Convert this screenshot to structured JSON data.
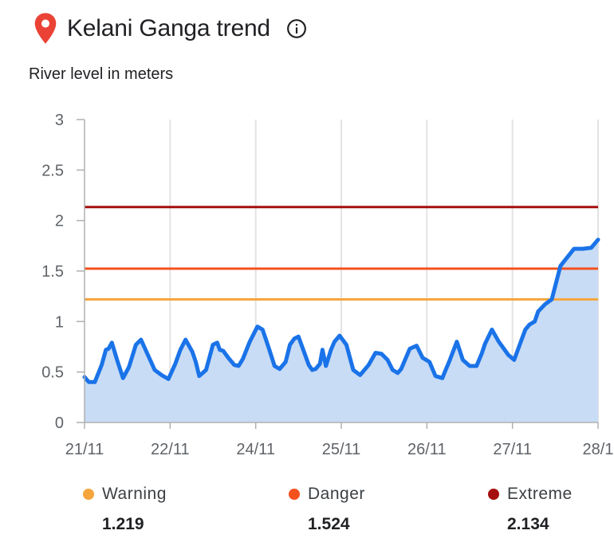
{
  "header": {
    "title": "Kelani Ganga trend",
    "pin_icon": "location-pin-icon",
    "info_icon": "info-icon",
    "pin_color": "#ea4335"
  },
  "subtitle": "River level in meters",
  "legend": [
    {
      "label": "Warning",
      "value": "1.219",
      "color": "#f5a53c"
    },
    {
      "label": "Danger",
      "value": "1.524",
      "color": "#f4511e"
    },
    {
      "label": "Extreme",
      "value": "2.134",
      "color": "#a50e0e"
    }
  ],
  "chart_data": {
    "type": "area",
    "ylabel": "River level in meters",
    "ylim": [
      0,
      3
    ],
    "yticks": [
      "0",
      "0.5",
      "1",
      "1.5",
      "2",
      "2.5",
      "3"
    ],
    "xlim": [
      0,
      6
    ],
    "xticks": [
      {
        "label": "21/11",
        "x": 0
      },
      {
        "label": "22/11",
        "x": 1
      },
      {
        "label": "24/11",
        "x": 2
      },
      {
        "label": "25/11",
        "x": 3
      },
      {
        "label": "26/11",
        "x": 4
      },
      {
        "label": "27/11",
        "x": 5
      },
      {
        "label": "28/1",
        "x": 6
      }
    ],
    "grid": "vertical",
    "thresholds": [
      {
        "name": "Warning",
        "value": 1.219,
        "color": "#f5a53c"
      },
      {
        "name": "Danger",
        "value": 1.524,
        "color": "#f4511e"
      },
      {
        "name": "Extreme",
        "value": 2.134,
        "color": "#a50e0e"
      }
    ],
    "series": [
      {
        "color": "#1a73e8",
        "fill": "#c9dcf5",
        "x": [
          0,
          0.05,
          0.12,
          0.2,
          0.25,
          0.28,
          0.32,
          0.38,
          0.45,
          0.52,
          0.6,
          0.66,
          0.74,
          0.82,
          0.9,
          0.98,
          1.06,
          1.12,
          1.18,
          1.26,
          1.3,
          1.34,
          1.42,
          1.5,
          1.55,
          1.58,
          1.62,
          1.68,
          1.75,
          1.8,
          1.85,
          1.93,
          2.02,
          2.08,
          2.16,
          2.22,
          2.28,
          2.35,
          2.4,
          2.45,
          2.5,
          2.56,
          2.62,
          2.66,
          2.7,
          2.75,
          2.78,
          2.82,
          2.88,
          2.92,
          2.98,
          3.06,
          3.14,
          3.22,
          3.32,
          3.4,
          3.47,
          3.54,
          3.6,
          3.66,
          3.7,
          3.8,
          3.88,
          3.95,
          4.03,
          4.1,
          4.18,
          4.22,
          4.26,
          4.35,
          4.42,
          4.5,
          4.58,
          4.64,
          4.68,
          4.76,
          4.84,
          4.9,
          4.95,
          5.02,
          5.08,
          5.15,
          5.2,
          5.26,
          5.3,
          5.38,
          5.46,
          5.56,
          5.72,
          5.82,
          5.92,
          6.0
        ],
        "values": [
          0.45,
          0.4,
          0.4,
          0.57,
          0.72,
          0.73,
          0.79,
          0.62,
          0.44,
          0.55,
          0.77,
          0.82,
          0.67,
          0.52,
          0.47,
          0.43,
          0.58,
          0.72,
          0.82,
          0.7,
          0.6,
          0.46,
          0.52,
          0.77,
          0.79,
          0.72,
          0.71,
          0.64,
          0.57,
          0.56,
          0.63,
          0.8,
          0.95,
          0.92,
          0.72,
          0.56,
          0.53,
          0.6,
          0.77,
          0.83,
          0.85,
          0.71,
          0.57,
          0.52,
          0.53,
          0.58,
          0.72,
          0.56,
          0.72,
          0.8,
          0.86,
          0.77,
          0.52,
          0.47,
          0.57,
          0.69,
          0.68,
          0.62,
          0.52,
          0.49,
          0.53,
          0.73,
          0.76,
          0.64,
          0.6,
          0.46,
          0.44,
          0.52,
          0.6,
          0.8,
          0.62,
          0.56,
          0.56,
          0.68,
          0.78,
          0.92,
          0.8,
          0.73,
          0.67,
          0.62,
          0.76,
          0.92,
          0.97,
          1.0,
          1.1,
          1.17,
          1.22,
          1.55,
          1.72,
          1.72,
          1.73,
          1.81
        ]
      }
    ]
  }
}
